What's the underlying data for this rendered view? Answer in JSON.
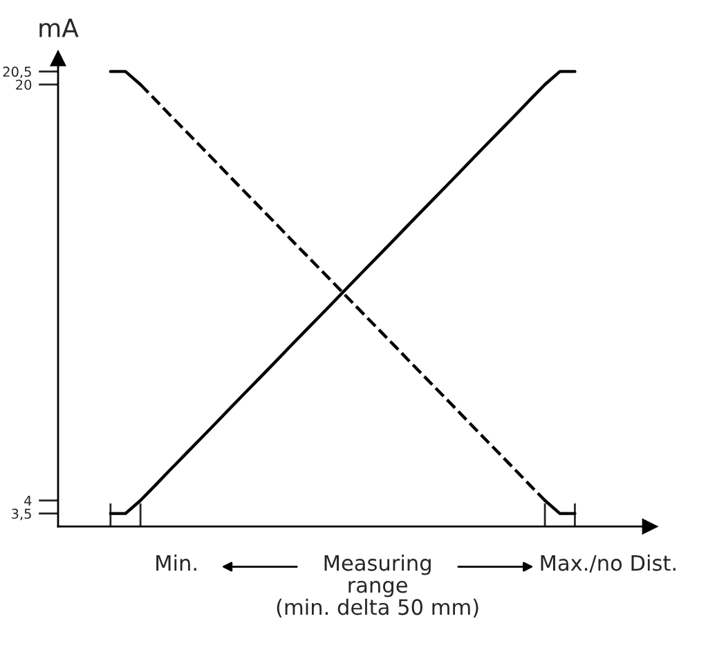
{
  "chart_data": {
    "type": "line",
    "ylabel": "mA",
    "categories": [
      null,
      null,
      null,
      null,
      null,
      null,
      null,
      null,
      null,
      null,
      null,
      null,
      null,
      null,
      null,
      null,
      null,
      null,
      null,
      null,
      null,
      null,
      null,
      null,
      null,
      null,
      null,
      null,
      null,
      null,
      null,
      null
    ],
    "ylim": [
      3,
      21
    ],
    "yticks": [
      {
        "value": 3.5,
        "label": "3,5"
      },
      4,
      20,
      {
        "value": 20.5,
        "label": "20,5"
      }
    ],
    "series": [
      {
        "color": "#000000",
        "line_style": "solid",
        "values": [
          3.5,
          3.5,
          4.0,
          4.59,
          5.19,
          5.78,
          6.37,
          6.96,
          7.56,
          8.15,
          8.74,
          9.33,
          9.93,
          10.52,
          11.11,
          11.7,
          12.3,
          12.89,
          13.48,
          14.07,
          14.67,
          15.26,
          15.85,
          16.44,
          17.04,
          17.63,
          18.22,
          18.81,
          19.41,
          20.0,
          20.5,
          20.5
        ]
      },
      {
        "color": "#000000",
        "line_style": "solid",
        "values": [
          20.5,
          20.5,
          20,
          null,
          null,
          null,
          null,
          null,
          null,
          null,
          null,
          null,
          null,
          null,
          null,
          null,
          null,
          null,
          null,
          null,
          null,
          null,
          null,
          null,
          null,
          null,
          null,
          null,
          null,
          null,
          null,
          null
        ]
      },
      {
        "color": "#000000",
        "line_style": "dashed",
        "values": [
          null,
          null,
          20.0,
          19.41,
          18.81,
          18.22,
          17.63,
          17.04,
          16.44,
          15.85,
          15.26,
          14.67,
          14.07,
          13.48,
          12.89,
          12.3,
          11.7,
          11.11,
          10.52,
          9.93,
          9.33,
          8.74,
          8.15,
          7.56,
          6.96,
          6.37,
          5.78,
          5.19,
          4.59,
          4.0,
          null,
          null
        ]
      },
      {
        "color": "#000000",
        "line_style": "solid",
        "values": [
          null,
          null,
          null,
          null,
          null,
          null,
          null,
          null,
          null,
          null,
          null,
          null,
          null,
          null,
          null,
          null,
          null,
          null,
          null,
          null,
          null,
          null,
          null,
          null,
          null,
          null,
          null,
          null,
          null,
          4,
          3.5,
          3.5
        ]
      }
    ],
    "annotations": [
      "Min.",
      "Measuring\nrange\n(min. delta 50 mm)",
      "Max./no Dist."
    ]
  }
}
